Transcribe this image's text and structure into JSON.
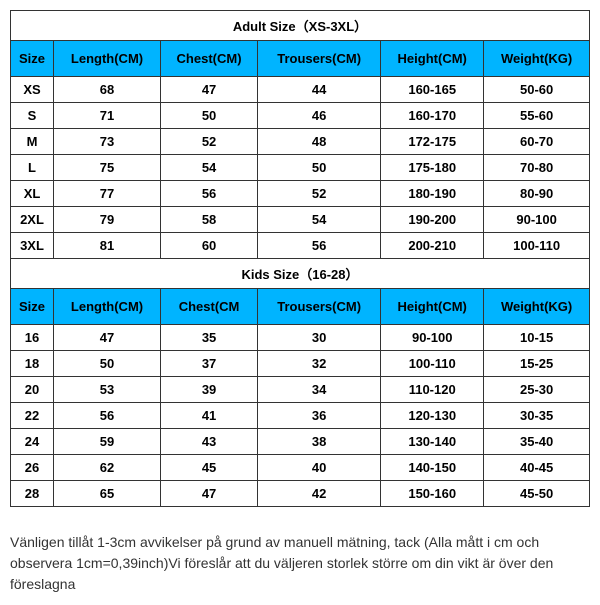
{
  "adult_section": {
    "title": "Adult Size（XS-3XL）",
    "columns": [
      "Size",
      "Length(CM)",
      "Chest(CM)",
      "Trousers(CM)",
      "Height(CM)",
      "Weight(KG)"
    ],
    "rows": [
      [
        "XS",
        "68",
        "47",
        "44",
        "160-165",
        "50-60"
      ],
      [
        "S",
        "71",
        "50",
        "46",
        "160-170",
        "55-60"
      ],
      [
        "M",
        "73",
        "52",
        "48",
        "172-175",
        "60-70"
      ],
      [
        "L",
        "75",
        "54",
        "50",
        "175-180",
        "70-80"
      ],
      [
        "XL",
        "77",
        "56",
        "52",
        "180-190",
        "80-90"
      ],
      [
        "2XL",
        "79",
        "58",
        "54",
        "190-200",
        "90-100"
      ],
      [
        "3XL",
        "81",
        "60",
        "56",
        "200-210",
        "100-110"
      ]
    ]
  },
  "kids_section": {
    "title": "Kids Size（16-28）",
    "columns": [
      "Size",
      "Length(CM)",
      "Chest(CM",
      "Trousers(CM)",
      "Height(CM)",
      "Weight(KG)"
    ],
    "rows": [
      [
        "16",
        "47",
        "35",
        "30",
        "90-100",
        "10-15"
      ],
      [
        "18",
        "50",
        "37",
        "32",
        "100-110",
        "15-25"
      ],
      [
        "20",
        "53",
        "39",
        "34",
        "110-120",
        "25-30"
      ],
      [
        "22",
        "56",
        "41",
        "36",
        "120-130",
        "30-35"
      ],
      [
        "24",
        "59",
        "43",
        "38",
        "130-140",
        "35-40"
      ],
      [
        "26",
        "62",
        "45",
        "40",
        "140-150",
        "40-45"
      ],
      [
        "28",
        "65",
        "47",
        "42",
        "150-160",
        "45-50"
      ]
    ]
  },
  "note": "Vänligen tillåt 1-3cm avvikelser på grund av manuell mätning, tack (Alla mått i cm och observera 1cm=0,39inch)Vi föreslår att du väljeren storlek större om din vikt är över den föreslagna",
  "styling": {
    "header_bg_color": "#00b4ff",
    "border_color": "#333333",
    "background_color": "#ffffff",
    "title_fontsize": 16,
    "cell_fontsize": 13,
    "note_fontsize": 14
  }
}
